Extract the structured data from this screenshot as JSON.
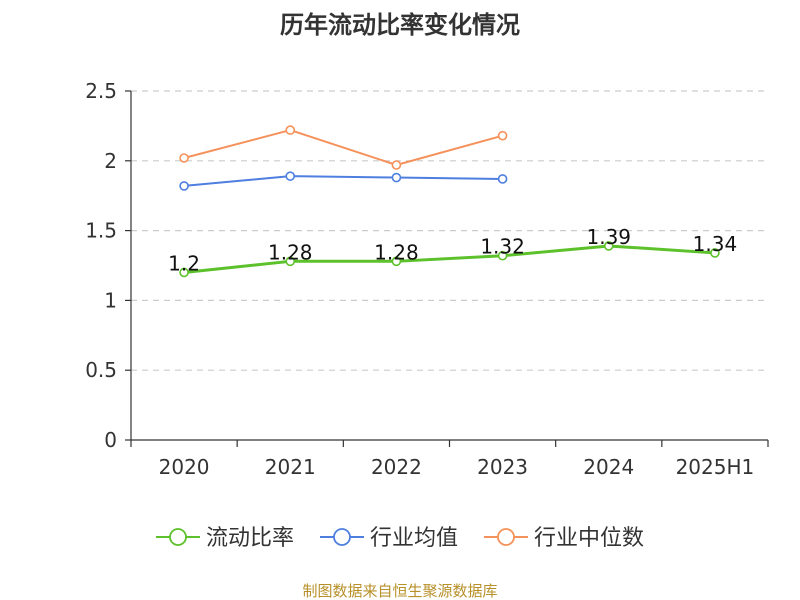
{
  "chart_data": {
    "type": "line",
    "title": "历年流动比率变化情况",
    "xlabel": "",
    "ylabel": "",
    "categories": [
      "2020",
      "2021",
      "2022",
      "2023",
      "2024",
      "2025H1"
    ],
    "ylim": [
      0,
      2.5
    ],
    "yticks": [
      "0",
      "0.5",
      "1",
      "1.5",
      "2",
      "2.5"
    ],
    "grid": true,
    "legend_position": "bottom",
    "series": [
      {
        "name": "流动比率",
        "color": "#5cc12b",
        "values": [
          1.2,
          1.28,
          1.28,
          1.32,
          1.39,
          1.34
        ],
        "labels": [
          "1.2",
          "1.28",
          "1.28",
          "1.32",
          "1.39",
          "1.34"
        ],
        "show_labels": true,
        "line_width": 3
      },
      {
        "name": "行业均值",
        "color": "#4e7fe0",
        "values": [
          1.82,
          1.89,
          1.88,
          1.87,
          null,
          null
        ],
        "show_labels": false,
        "line_width": 2
      },
      {
        "name": "行业中位数",
        "color": "#f5915a",
        "values": [
          2.02,
          2.22,
          1.97,
          2.18,
          null,
          null
        ],
        "show_labels": false,
        "line_width": 2
      }
    ],
    "source": "制图数据来自恒生聚源数据库"
  }
}
